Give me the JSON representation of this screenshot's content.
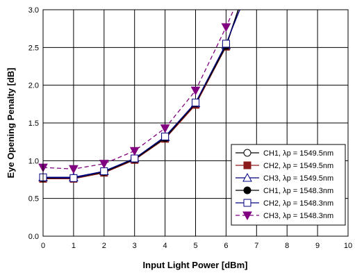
{
  "chart_data": {
    "type": "line",
    "title": "",
    "xlabel": "Input Light Power [dBm]",
    "ylabel": "Eye Opening Penalty [dB]",
    "xlim": [
      0,
      10
    ],
    "ylim": [
      0,
      3.0
    ],
    "xticks": [
      "0",
      "1",
      "2",
      "3",
      "4",
      "5",
      "6",
      "7",
      "8",
      "9",
      "10"
    ],
    "yticks": [
      "0.0",
      "0.5",
      "1.0",
      "1.5",
      "2.0",
      "2.5",
      "3.0"
    ],
    "grid": true,
    "legend_position": "bottom-right",
    "series": [
      {
        "name": "CH1, λp = 1549.5nm",
        "marker": "circle-open",
        "color": "#000000",
        "dash": "solid",
        "x": [
          0,
          1,
          2,
          3,
          4,
          5,
          6,
          6.4
        ],
        "y": [
          0.77,
          0.77,
          0.85,
          1.02,
          1.3,
          1.75,
          2.52,
          3.0
        ]
      },
      {
        "name": "CH2, λp = 1549.5nm",
        "marker": "square-filled",
        "color": "#8b1a1a",
        "dash": "solid",
        "x": [
          0,
          1,
          2,
          3,
          4,
          5,
          6,
          6.4
        ],
        "y": [
          0.76,
          0.76,
          0.84,
          1.01,
          1.29,
          1.74,
          2.51,
          3.0
        ]
      },
      {
        "name": "CH3, λp = 1549.5nm",
        "marker": "triangle-up-open",
        "color": "#000080",
        "dash": "solid",
        "x": [
          0,
          1,
          2,
          3,
          4,
          5,
          6,
          6.4
        ],
        "y": [
          0.78,
          0.78,
          0.86,
          1.03,
          1.31,
          1.76,
          2.53,
          3.0
        ]
      },
      {
        "name": "CH1, λp = 1548.3nm",
        "marker": "circle-filled",
        "color": "#000000",
        "dash": "solid",
        "x": [
          0,
          1,
          2,
          3,
          4,
          5,
          6,
          6.4
        ],
        "y": [
          0.77,
          0.77,
          0.85,
          1.02,
          1.3,
          1.76,
          2.52,
          3.0
        ]
      },
      {
        "name": "CH2, λp = 1548.3nm",
        "marker": "square-open",
        "color": "#000080",
        "dash": "solid",
        "x": [
          0,
          1,
          2,
          3,
          4,
          5,
          6,
          6.45
        ],
        "y": [
          0.78,
          0.77,
          0.86,
          1.03,
          1.32,
          1.77,
          2.55,
          3.0
        ]
      },
      {
        "name": "CH3, λp = 1548.3nm",
        "marker": "triangle-down-filled",
        "color": "#800080",
        "dash": "dash",
        "x": [
          0,
          1,
          2,
          3,
          4,
          5,
          6,
          6.25
        ],
        "y": [
          0.91,
          0.89,
          0.96,
          1.13,
          1.43,
          1.93,
          2.77,
          3.0
        ]
      }
    ]
  }
}
